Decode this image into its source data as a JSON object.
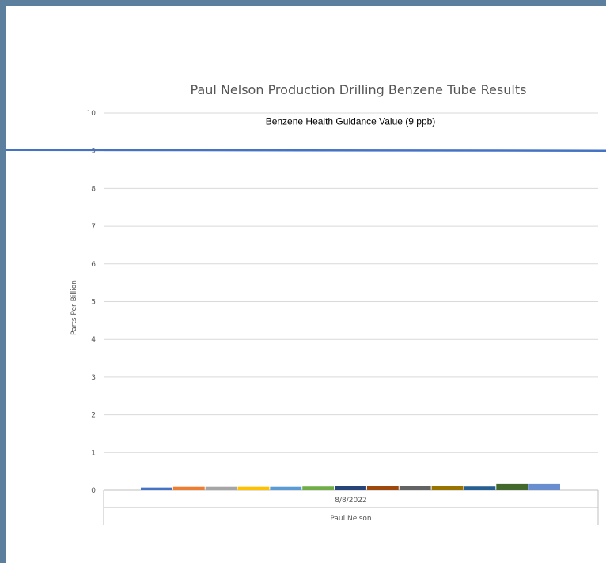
{
  "chart_data": {
    "type": "bar",
    "title": "Paul Nelson Production Drilling Benzene Tube Results",
    "ylabel": "Parts Per Billion",
    "ylim": [
      0,
      10
    ],
    "yticks": [
      "0",
      "1",
      "2",
      "3",
      "4",
      "5",
      "6",
      "7",
      "8",
      "9",
      "10"
    ],
    "categories": [
      "8/8/2022"
    ],
    "group_label": "Paul Nelson",
    "series": [
      {
        "values": [
          0.07
        ],
        "color": "#4472c4"
      },
      {
        "values": [
          0.09
        ],
        "color": "#ed7d31"
      },
      {
        "values": [
          0.09
        ],
        "color": "#a5a5a5"
      },
      {
        "values": [
          0.09
        ],
        "color": "#ffc000"
      },
      {
        "values": [
          0.09
        ],
        "color": "#5b9bd5"
      },
      {
        "values": [
          0.1
        ],
        "color": "#70ad47"
      },
      {
        "values": [
          0.12
        ],
        "color": "#264478"
      },
      {
        "values": [
          0.12
        ],
        "color": "#9e480e"
      },
      {
        "values": [
          0.12
        ],
        "color": "#636363"
      },
      {
        "values": [
          0.12
        ],
        "color": "#997300"
      },
      {
        "values": [
          0.1
        ],
        "color": "#255e91"
      },
      {
        "values": [
          0.17
        ],
        "color": "#43682b"
      },
      {
        "values": [
          0.17
        ],
        "color": "#698ed0"
      }
    ],
    "reference_line": {
      "value": 9,
      "label": "Benzene Health Guidance Value (9 ppb)",
      "color": "#4472c4"
    },
    "grid": true,
    "legend": "none"
  }
}
